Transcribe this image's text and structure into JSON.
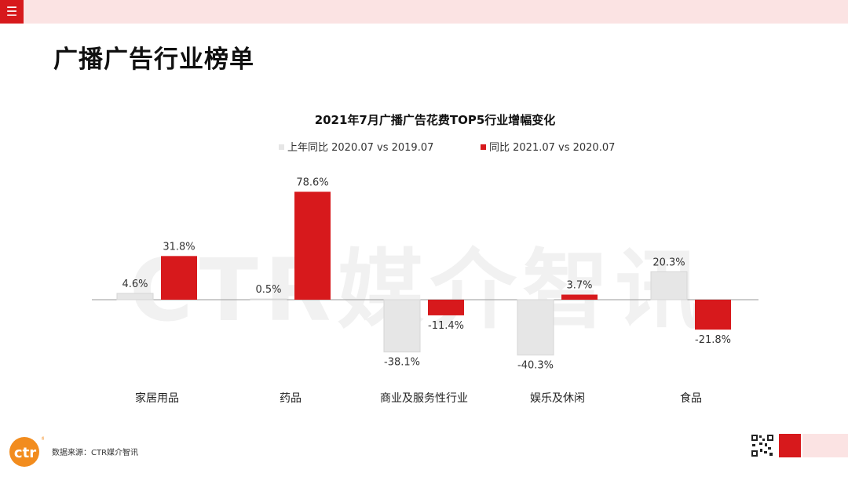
{
  "header": {
    "menu_icon": "hamburger-icon",
    "title": "广播广告行业榜单"
  },
  "watermark": "CTR媒介智讯",
  "colors": {
    "accent": "#d7191c",
    "light": "#fbe3e3",
    "grey_bar": "#e6e6e6"
  },
  "chart_data": {
    "type": "bar",
    "title": "2021年7月广播广告花费TOP5行业增幅变化",
    "categories": [
      "家居用品",
      "药品",
      "商业及服务性行业",
      "娱乐及休闲",
      "食品"
    ],
    "series": [
      {
        "name": "上年同比 2020.07 vs 2019.07",
        "values": [
          4.6,
          0.5,
          -38.1,
          -40.3,
          20.3
        ],
        "labels": [
          "4.6%",
          "0.5%",
          "-38.1%",
          "-40.3%",
          "20.3%"
        ],
        "color": "#e6e6e6"
      },
      {
        "name": "同比 2021.07 vs 2020.07",
        "values": [
          31.8,
          78.6,
          -11.4,
          3.7,
          -21.8
        ],
        "labels": [
          "31.8%",
          "78.6%",
          "-11.4%",
          "3.7%",
          "-21.8%"
        ],
        "color": "#d7191c"
      }
    ],
    "ylim": [
      -45,
      80
    ],
    "grid": false,
    "legend_position": "top-center"
  },
  "footer": {
    "logo_text": "ctr",
    "source": "数据来源：CTR媒介智讯",
    "qr_icon": "qr-code-icon"
  }
}
